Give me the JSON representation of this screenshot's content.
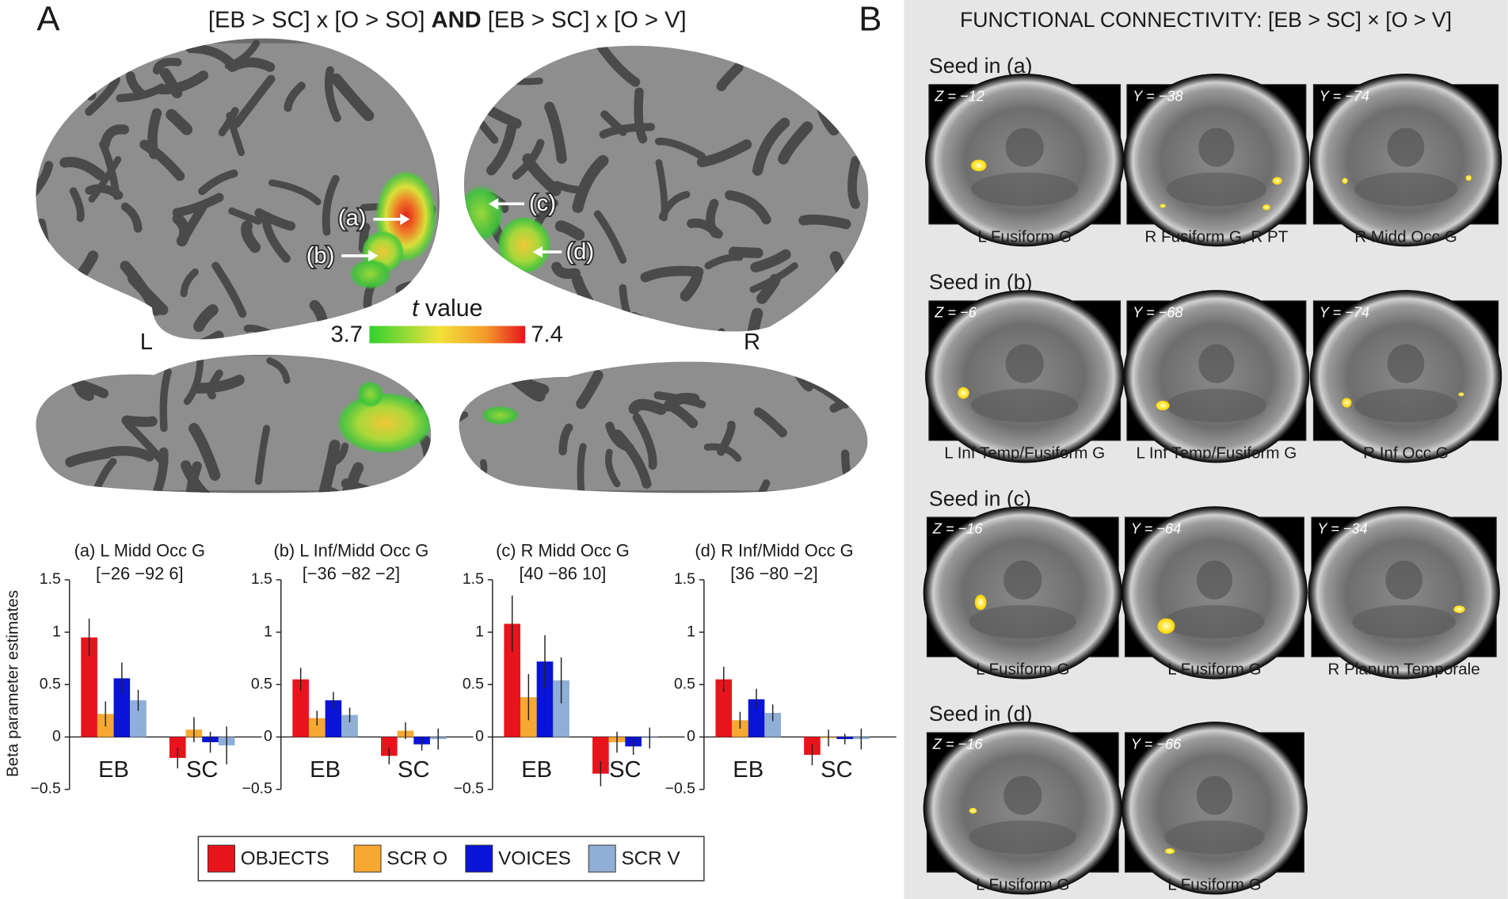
{
  "panel_a": {
    "label": "A",
    "title_parts": [
      "[EB > SC] x [O > SO] ",
      "AND",
      " [EB > SC] x [O > V]"
    ],
    "colorbar": {
      "label_italic": "t",
      "label": " value",
      "min": 3.7,
      "max": 7.4
    },
    "hemisphere_labels": [
      "L",
      "R"
    ],
    "annotations": [
      "(a)",
      "(b)",
      "(c)",
      "(d)"
    ]
  },
  "chart_data": [
    {
      "type": "bar",
      "title": "(a) L Midd Occ G",
      "subtitle": "[−26 −92 6]",
      "ylabel": "Beta parameter estimates",
      "categories": [
        "EB",
        "SC"
      ],
      "ylim": [
        -0.5,
        1.5
      ],
      "yticks": [
        {
          "value": -0.5,
          "label": "−0.5"
        },
        0,
        0.5,
        1,
        1.5
      ],
      "series": [
        {
          "name": "OBJECTS",
          "color": "#e8141c",
          "values": [
            0.95,
            -0.2
          ],
          "errors": [
            0.18,
            0.1
          ]
        },
        {
          "name": "SCR O",
          "color": "#f7a832",
          "values": [
            0.22,
            0.07
          ],
          "errors": [
            0.12,
            0.12
          ]
        },
        {
          "name": "VOICES",
          "color": "#0a14d6",
          "values": [
            0.56,
            -0.05
          ],
          "errors": [
            0.15,
            0.1
          ]
        },
        {
          "name": "SCR V",
          "color": "#8fafd6",
          "values": [
            0.35,
            -0.08
          ],
          "errors": [
            0.1,
            0.18
          ]
        }
      ]
    },
    {
      "type": "bar",
      "title": "(b) L Inf/Midd Occ G",
      "subtitle": "[−36 −82 −2]",
      "categories": [
        "EB",
        "SC"
      ],
      "ylim": [
        -0.5,
        1.5
      ],
      "yticks": [
        {
          "value": -0.5,
          "label": "−0.5"
        },
        0,
        0.5,
        1,
        1.5
      ],
      "series": [
        {
          "color": "#e8141c",
          "values": [
            0.55,
            -0.18
          ],
          "errors": [
            0.11,
            0.08
          ]
        },
        {
          "color": "#f7a832",
          "values": [
            0.18,
            0.06
          ],
          "errors": [
            0.07,
            0.08
          ]
        },
        {
          "color": "#0a14d6",
          "values": [
            0.35,
            -0.07
          ],
          "errors": [
            0.08,
            0.06
          ]
        },
        {
          "color": "#8fafd6",
          "values": [
            0.21,
            -0.02
          ],
          "errors": [
            0.07,
            0.1
          ]
        }
      ]
    },
    {
      "type": "bar",
      "title": "(c) R Midd Occ G",
      "subtitle": "[40 −86 10]",
      "categories": [
        "EB",
        "SC"
      ],
      "ylim": [
        -0.5,
        1.5
      ],
      "yticks": [
        {
          "value": -0.5,
          "label": "−0.5"
        },
        0,
        0.5,
        1,
        1.5
      ],
      "series": [
        {
          "color": "#e8141c",
          "values": [
            1.08,
            -0.35
          ],
          "errors": [
            0.27,
            0.12
          ]
        },
        {
          "color": "#f7a832",
          "values": [
            0.38,
            -0.05
          ],
          "errors": [
            0.22,
            0.1
          ]
        },
        {
          "color": "#0a14d6",
          "values": [
            0.72,
            -0.09
          ],
          "errors": [
            0.25,
            0.08
          ]
        },
        {
          "color": "#8fafd6",
          "values": [
            0.54,
            -0.01
          ],
          "errors": [
            0.22,
            0.1
          ]
        }
      ]
    },
    {
      "type": "bar",
      "title": "(d) R Inf/Midd Occ G",
      "subtitle": "[36 −80 −2]",
      "categories": [
        "EB",
        "SC"
      ],
      "ylim": [
        -0.5,
        1.5
      ],
      "yticks": [
        {
          "value": -0.5,
          "label": "−0.5"
        },
        0,
        0.5,
        1,
        1.5
      ],
      "series": [
        {
          "color": "#e8141c",
          "values": [
            0.55,
            -0.17
          ],
          "errors": [
            0.12,
            0.1
          ]
        },
        {
          "color": "#f7a832",
          "values": [
            0.16,
            -0.01
          ],
          "errors": [
            0.08,
            0.08
          ]
        },
        {
          "color": "#0a14d6",
          "values": [
            0.36,
            -0.02
          ],
          "errors": [
            0.1,
            0.05
          ]
        },
        {
          "color": "#8fafd6",
          "values": [
            0.23,
            -0.02
          ],
          "errors": [
            0.08,
            0.1
          ]
        }
      ]
    }
  ],
  "panel_b": {
    "label": "B",
    "title": "FUNCTIONAL CONNECTIVITY: [EB > SC] × [O > V]",
    "rows": [
      {
        "seed": "Seed in (a)",
        "images": [
          {
            "coord": "Z = −12",
            "caption": "L Fusiform G"
          },
          {
            "coord": "Y = −38",
            "caption": "R Fusiform G, R PT"
          },
          {
            "coord": "Y = −74",
            "caption": "R Midd Occ G"
          }
        ]
      },
      {
        "seed": "Seed in (b)",
        "images": [
          {
            "coord": "Z = −6",
            "caption": "L Inf Temp/Fusiform G"
          },
          {
            "coord": "Y = −68",
            "caption": "L Inf Temp/Fusiform G"
          },
          {
            "coord": "Y = −74",
            "caption": "R Inf Occ G"
          }
        ]
      },
      {
        "seed": "Seed in (c)",
        "images": [
          {
            "coord": "Z = −16",
            "caption": "L Fusiform G"
          },
          {
            "coord": "Y = −64",
            "caption": "L Fusiform G"
          },
          {
            "coord": "Y = −34",
            "caption": "R Planum Temporale"
          }
        ]
      },
      {
        "seed": "Seed in (d)",
        "images": [
          {
            "coord": "Z = −16",
            "caption": "L Fusiform G"
          },
          {
            "coord": "Y = −66",
            "caption": "L Fusiform G"
          }
        ]
      }
    ]
  }
}
